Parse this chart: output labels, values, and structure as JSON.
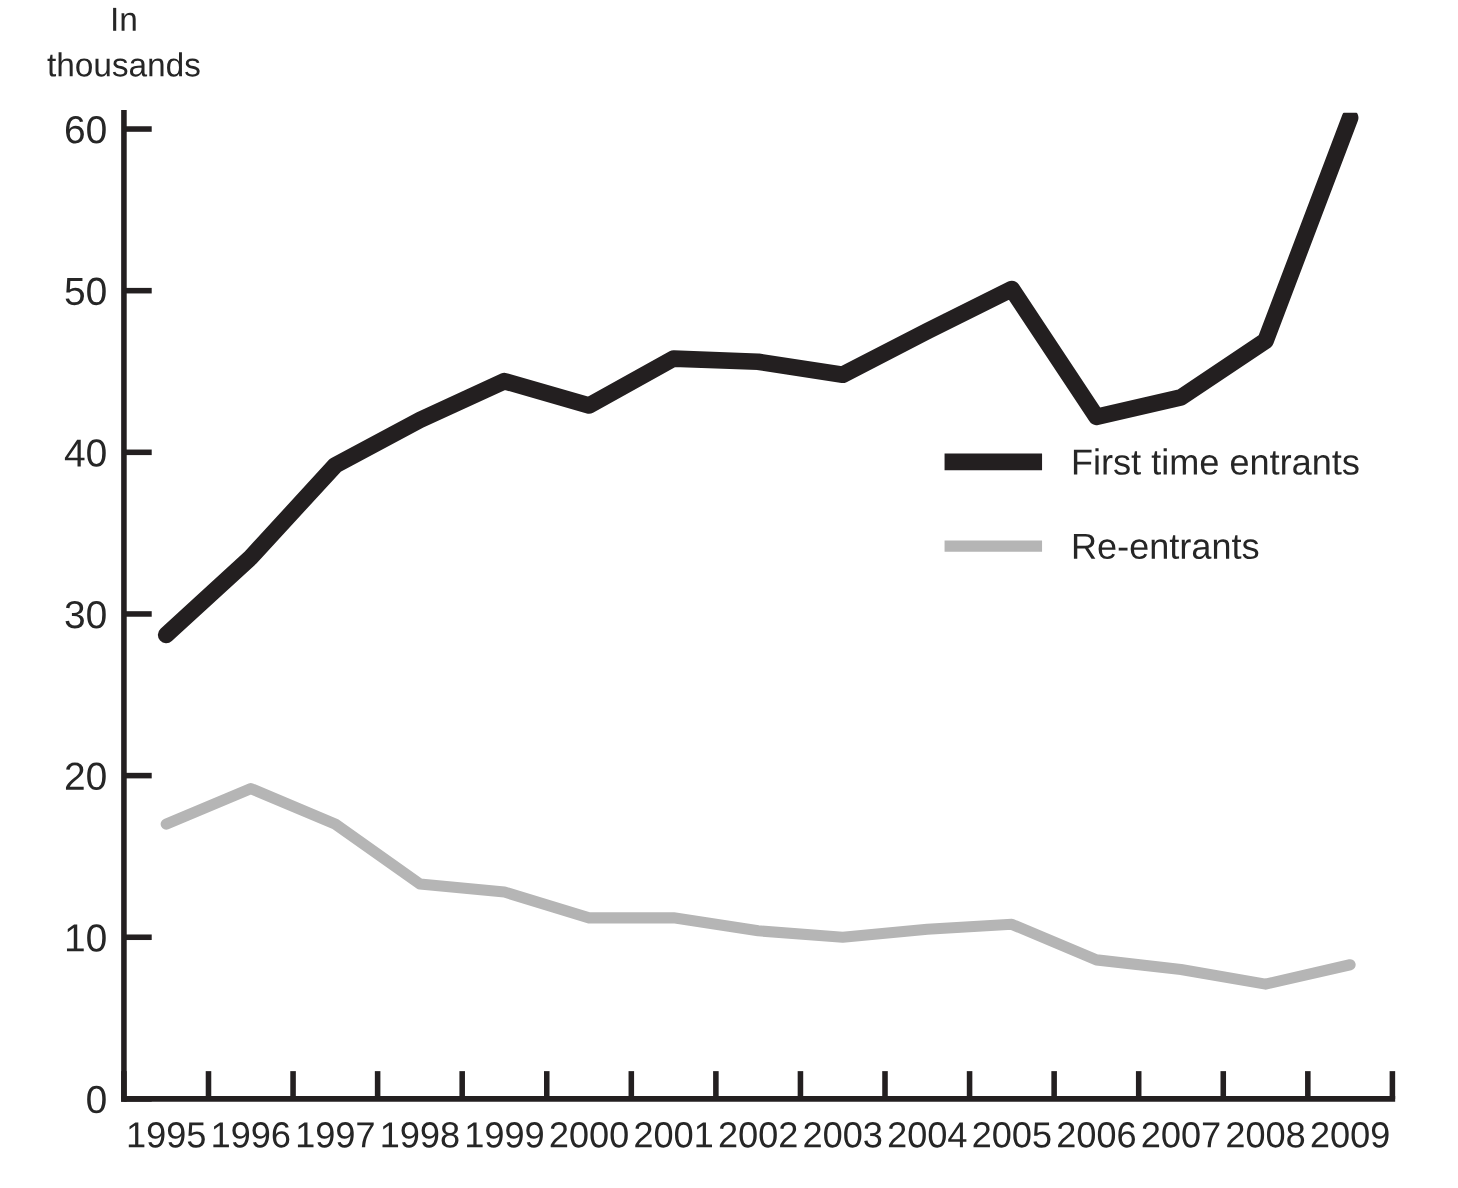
{
  "chart_data": {
    "type": "line",
    "ylabel": "In\nthousands",
    "categories": [
      "1995",
      "1996",
      "1997",
      "1998",
      "1999",
      "2000",
      "2001",
      "2002",
      "2003",
      "2004",
      "2005",
      "2006",
      "2007",
      "2008",
      "2009"
    ],
    "series": [
      {
        "name": "First time entrants",
        "color": "#231f20",
        "values": [
          28.7,
          33.5,
          39.2,
          42,
          44.4,
          42.9,
          45.8,
          45.6,
          44.8,
          47.5,
          50.1,
          42.2,
          43.4,
          46.9,
          60.7
        ]
      },
      {
        "name": "Re-entrants",
        "color": "#b5b5b5",
        "values": [
          17,
          19.2,
          17,
          13.3,
          12.8,
          11.2,
          11.2,
          10.4,
          10,
          10.5,
          10.8,
          8.6,
          8,
          7.1,
          8.3
        ]
      }
    ],
    "ylim": [
      0,
      61
    ],
    "yticks": [
      0,
      10,
      20,
      30,
      40,
      50,
      60
    ],
    "grid": false,
    "legend": "right",
    "line_style": "solid",
    "marker": "none"
  }
}
